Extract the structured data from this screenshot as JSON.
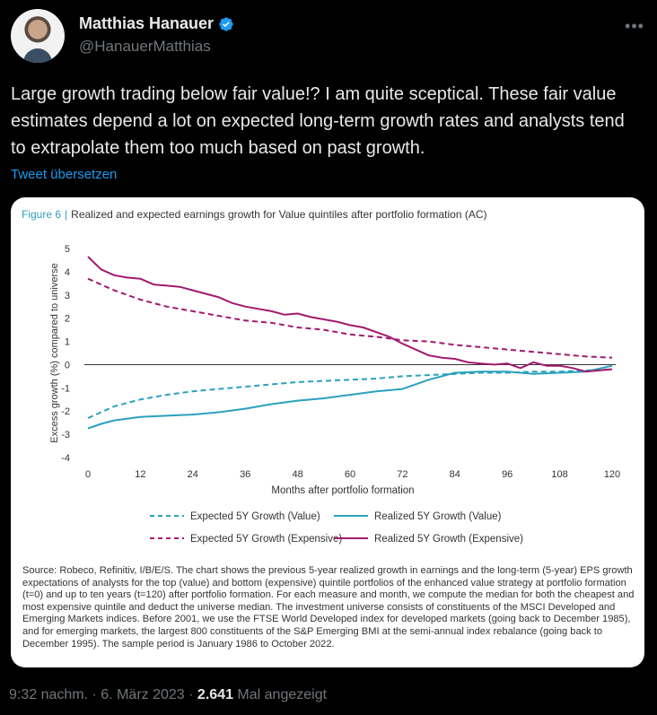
{
  "author": {
    "name": "Matthias Hanauer",
    "handle": "@HanauerMatthias"
  },
  "tweet": {
    "text": "Large growth trading below fair value!? I am quite sceptical. These fair value estimates depend a lot on expected long-term growth rates and analysts tend to extrapolate them too much based on past growth.",
    "translate_label": "Tweet übersetzen"
  },
  "figure": {
    "number": "Figure 6",
    "separator": "|",
    "caption": "Realized and expected earnings growth for Value quintiles after portfolio formation (AC)",
    "source": "Source: Robeco, Refinitiv, I/B/E/S. The chart shows the previous 5-year realized growth in earnings and the long-term (5-year) EPS growth expectations of analysts for the top (value) and bottom (expensive) quintile portfolios of the enhanced value strategy at portfolio formation (t=0) and up to ten years (t=120) after portfolio formation. For each measure and month, we compute the median for both the cheapest and most expensive quintile and deduct the universe median. The investment universe consists of constituents of the MSCI Developed and Emerging Markets indices. Before 2001, we use the FTSE World Developed index for developed markets (going back to December 1985), and for emerging markets, the largest 800 constituents of the S&P Emerging BMI at the semi-annual index rebalance (going back to December 1995). The sample period is January 1986 to October 2022."
  },
  "chart_data": {
    "type": "line",
    "xlabel": "Months after portfolio formation",
    "ylabel": "Excess growth (%) compared to universe",
    "xlim": [
      0,
      120
    ],
    "ylim": [
      -4,
      5
    ],
    "x_ticks": [
      0,
      12,
      24,
      36,
      48,
      60,
      72,
      84,
      96,
      108,
      120
    ],
    "y_ticks": [
      5,
      4,
      3,
      2,
      1,
      0,
      -1,
      -2,
      -3,
      -4
    ],
    "legend_placement": "bottom",
    "series": [
      {
        "name": "Expected 5Y Growth (Value)",
        "color": "#2aa1bd",
        "dashed": true,
        "x": [
          0,
          6,
          12,
          18,
          24,
          30,
          36,
          42,
          48,
          54,
          60,
          66,
          72,
          78,
          84,
          90,
          96,
          102,
          108,
          114,
          120
        ],
        "y": [
          -2.3,
          -1.8,
          -1.5,
          -1.3,
          -1.15,
          -1.05,
          -0.95,
          -0.85,
          -0.75,
          -0.7,
          -0.65,
          -0.6,
          -0.5,
          -0.45,
          -0.4,
          -0.35,
          -0.35,
          -0.3,
          -0.3,
          -0.25,
          -0.2
        ]
      },
      {
        "name": "Realized 5Y Growth (Value)",
        "color": "#2aa1bd",
        "dashed": false,
        "x": [
          0,
          3,
          6,
          12,
          18,
          24,
          30,
          36,
          42,
          48,
          54,
          60,
          66,
          72,
          78,
          84,
          90,
          96,
          102,
          108,
          114,
          120
        ],
        "y": [
          -2.75,
          -2.55,
          -2.4,
          -2.25,
          -2.2,
          -2.15,
          -2.05,
          -1.9,
          -1.7,
          -1.55,
          -1.45,
          -1.3,
          -1.15,
          -1.05,
          -0.65,
          -0.35,
          -0.3,
          -0.3,
          -0.4,
          -0.35,
          -0.3,
          -0.05
        ]
      },
      {
        "name": "Expected 5Y Growth (Expensive)",
        "color": "#a21a6e",
        "dashed": true,
        "x": [
          0,
          6,
          12,
          18,
          24,
          30,
          36,
          42,
          48,
          54,
          60,
          66,
          72,
          78,
          84,
          90,
          96,
          102,
          108,
          114,
          120
        ],
        "y": [
          3.7,
          3.2,
          2.8,
          2.5,
          2.3,
          2.1,
          1.9,
          1.8,
          1.6,
          1.5,
          1.3,
          1.2,
          1.05,
          1.0,
          0.85,
          0.75,
          0.65,
          0.55,
          0.45,
          0.35,
          0.3
        ]
      },
      {
        "name": "Realized 5Y Growth (Expensive)",
        "color": "#a21a6e",
        "dashed": false,
        "x": [
          0,
          3,
          6,
          9,
          12,
          15,
          18,
          21,
          24,
          27,
          30,
          33,
          36,
          39,
          42,
          45,
          48,
          51,
          54,
          57,
          60,
          63,
          66,
          69,
          72,
          75,
          78,
          81,
          84,
          87,
          90,
          93,
          96,
          99,
          102,
          105,
          108,
          111,
          114,
          117,
          120
        ],
        "y": [
          4.65,
          4.1,
          3.85,
          3.75,
          3.7,
          3.45,
          3.4,
          3.35,
          3.2,
          3.05,
          2.9,
          2.65,
          2.5,
          2.4,
          2.3,
          2.15,
          2.2,
          2.05,
          1.95,
          1.85,
          1.7,
          1.6,
          1.4,
          1.2,
          0.9,
          0.65,
          0.4,
          0.3,
          0.25,
          0.1,
          0.05,
          0.0,
          0.05,
          -0.15,
          0.1,
          -0.05,
          -0.05,
          -0.15,
          -0.3,
          -0.25,
          -0.2
        ]
      }
    ]
  },
  "meta": {
    "time": "9:32 nachm.",
    "dot": "·",
    "date": "6. März 2023",
    "views_count": "2.641",
    "views_label": "Mal angezeigt"
  }
}
